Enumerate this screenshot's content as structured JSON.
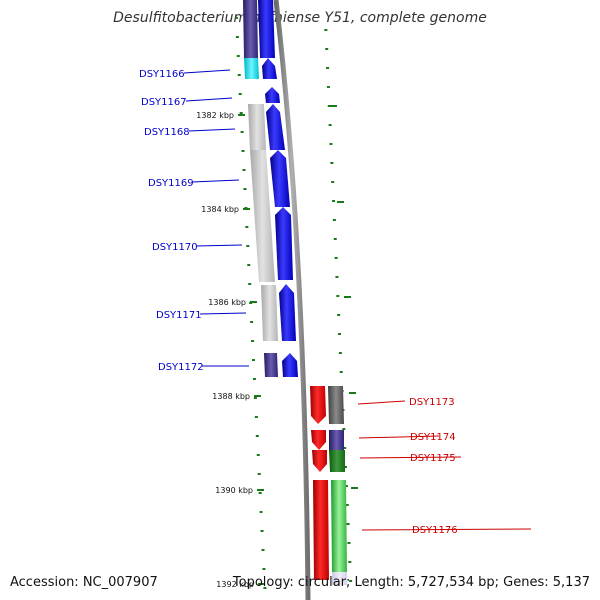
{
  "title": "Desulfitobacterium hafniense Y51, complete genome",
  "accession": "Accession: NC_007907",
  "summary": "Topology: circular; Length: 5,727,534 bp; Genes: 5,137",
  "colors": {
    "forward_label": "#0000cc",
    "reverse_label": "#cc0000",
    "forward_cds": "#0000ff",
    "reverse_cds": "#ff0000",
    "tick": "#1a7a1a",
    "backbone": "#888888"
  },
  "ticks": [
    {
      "label": "1382 kbp"
    },
    {
      "label": "1384 kbp"
    },
    {
      "label": "1386 kbp"
    },
    {
      "label": "1388 kbp"
    },
    {
      "label": "1390 kbp"
    },
    {
      "label": "1392 kbp"
    }
  ],
  "forward_genes": [
    "DSY1166",
    "DSY1167",
    "DSY1168",
    "DSY1169",
    "DSY1170",
    "DSY1171",
    "DSY1172"
  ],
  "reverse_genes": [
    "DSY1173",
    "DSY1174",
    "DSY1175",
    "DSY1176"
  ]
}
